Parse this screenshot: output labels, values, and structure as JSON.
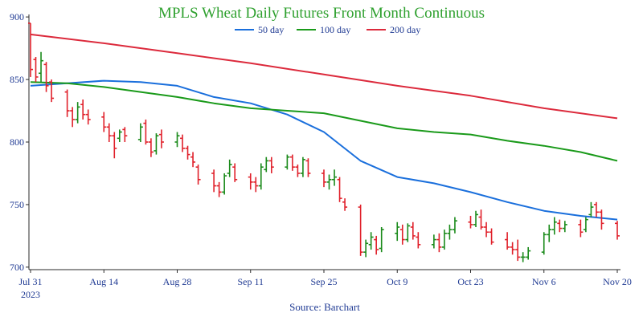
{
  "chart_data": {
    "type": "ohlc",
    "title": "MPLS Wheat Daily Futures Front Month Continuous",
    "source": "Source: Barchart",
    "colors": {
      "title": "#2ea02e",
      "up": "#1a8a1a",
      "down": "#e0202a",
      "axis_text": "#1f3a93"
    },
    "ylim": [
      698,
      902
    ],
    "y_ticks": [
      700,
      750,
      800,
      850,
      900
    ],
    "x_ticks": [
      {
        "label": "Jul 31",
        "sublabel": "2023",
        "date": "2023-07-31"
      },
      {
        "label": "Aug 14",
        "date": "2023-08-14"
      },
      {
        "label": "Aug 28",
        "date": "2023-08-28"
      },
      {
        "label": "Sep 11",
        "date": "2023-09-11"
      },
      {
        "label": "Sep 25",
        "date": "2023-09-25"
      },
      {
        "label": "Oct 9",
        "date": "2023-10-09"
      },
      {
        "label": "Oct 23",
        "date": "2023-10-23"
      },
      {
        "label": "Nov 6",
        "date": "2023-11-06"
      },
      {
        "label": "Nov 20",
        "date": "2023-11-20"
      }
    ],
    "x_range": [
      "2023-07-31",
      "2023-11-20"
    ],
    "series": [
      {
        "name": "50 day",
        "color": "#1a6fdc",
        "points": [
          [
            "2023-07-31",
            845
          ],
          [
            "2023-08-07",
            847
          ],
          [
            "2023-08-14",
            849
          ],
          [
            "2023-08-21",
            848
          ],
          [
            "2023-08-28",
            845
          ],
          [
            "2023-09-04",
            836
          ],
          [
            "2023-09-11",
            831
          ],
          [
            "2023-09-18",
            822
          ],
          [
            "2023-09-25",
            808
          ],
          [
            "2023-10-02",
            785
          ],
          [
            "2023-10-09",
            772
          ],
          [
            "2023-10-16",
            767
          ],
          [
            "2023-10-23",
            760
          ],
          [
            "2023-10-30",
            752
          ],
          [
            "2023-11-06",
            745
          ],
          [
            "2023-11-13",
            741
          ],
          [
            "2023-11-20",
            738
          ]
        ]
      },
      {
        "name": "100 day",
        "color": "#1a9a1a",
        "points": [
          [
            "2023-07-31",
            848
          ],
          [
            "2023-08-07",
            847
          ],
          [
            "2023-08-14",
            844
          ],
          [
            "2023-08-21",
            840
          ],
          [
            "2023-08-28",
            836
          ],
          [
            "2023-09-04",
            831
          ],
          [
            "2023-09-11",
            827
          ],
          [
            "2023-09-18",
            825
          ],
          [
            "2023-09-25",
            823
          ],
          [
            "2023-10-02",
            817
          ],
          [
            "2023-10-09",
            811
          ],
          [
            "2023-10-16",
            808
          ],
          [
            "2023-10-23",
            806
          ],
          [
            "2023-10-30",
            801
          ],
          [
            "2023-11-06",
            797
          ],
          [
            "2023-11-13",
            792
          ],
          [
            "2023-11-20",
            785
          ]
        ]
      },
      {
        "name": "200 day",
        "color": "#dc2a3c",
        "points": [
          [
            "2023-07-31",
            886
          ],
          [
            "2023-08-14",
            879
          ],
          [
            "2023-08-28",
            871
          ],
          [
            "2023-09-11",
            863
          ],
          [
            "2023-09-25",
            854
          ],
          [
            "2023-10-09",
            845
          ],
          [
            "2023-10-23",
            837
          ],
          [
            "2023-11-06",
            827
          ],
          [
            "2023-11-20",
            819
          ]
        ]
      }
    ],
    "ohlc": [
      [
        "2023-07-31",
        895,
        895,
        852,
        858
      ],
      [
        "2023-08-01",
        866,
        868,
        848,
        852
      ],
      [
        "2023-08-02",
        855,
        872,
        848,
        865
      ],
      [
        "2023-08-03",
        862,
        864,
        840,
        845
      ],
      [
        "2023-08-04",
        848,
        850,
        832,
        835
      ],
      [
        "2023-08-07",
        840,
        842,
        820,
        825
      ],
      [
        "2023-08-08",
        825,
        828,
        812,
        818
      ],
      [
        "2023-08-09",
        818,
        832,
        815,
        828
      ],
      [
        "2023-08-10",
        830,
        834,
        818,
        822
      ],
      [
        "2023-08-11",
        822,
        826,
        814,
        818
      ],
      [
        "2023-08-14",
        820,
        824,
        808,
        812
      ],
      [
        "2023-08-15",
        812,
        815,
        800,
        805
      ],
      [
        "2023-08-16",
        805,
        808,
        787,
        795
      ],
      [
        "2023-08-17",
        803,
        810,
        800,
        808
      ],
      [
        "2023-08-18",
        810,
        812,
        800,
        805
      ],
      [
        "2023-08-21",
        802,
        815,
        800,
        812
      ],
      [
        "2023-08-22",
        815,
        818,
        798,
        800
      ],
      [
        "2023-08-23",
        800,
        803,
        788,
        792
      ],
      [
        "2023-08-24",
        793,
        807,
        790,
        805
      ],
      [
        "2023-08-25",
        806,
        810,
        795,
        800
      ],
      [
        "2023-08-28",
        800,
        808,
        796,
        805
      ],
      [
        "2023-08-29",
        803,
        806,
        792,
        795
      ],
      [
        "2023-08-30",
        795,
        797,
        786,
        790
      ],
      [
        "2023-08-31",
        788,
        792,
        780,
        784
      ],
      [
        "2023-09-01",
        780,
        782,
        766,
        770
      ],
      [
        "2023-09-04",
        775,
        778,
        760,
        765
      ],
      [
        "2023-09-05",
        765,
        768,
        756,
        760
      ],
      [
        "2023-09-06",
        760,
        775,
        758,
        773
      ],
      [
        "2023-09-07",
        775,
        786,
        772,
        782
      ],
      [
        "2023-09-08",
        780,
        783,
        768,
        770
      ],
      [
        "2023-09-11",
        772,
        775,
        762,
        768
      ],
      [
        "2023-09-12",
        768,
        772,
        760,
        765
      ],
      [
        "2023-09-13",
        765,
        783,
        762,
        780
      ],
      [
        "2023-09-14",
        778,
        788,
        776,
        785
      ],
      [
        "2023-09-15",
        785,
        788,
        775,
        780
      ],
      [
        "2023-09-18",
        780,
        790,
        778,
        788
      ],
      [
        "2023-09-19",
        788,
        790,
        777,
        780
      ],
      [
        "2023-09-20",
        780,
        782,
        772,
        775
      ],
      [
        "2023-09-21",
        775,
        788,
        772,
        786
      ],
      [
        "2023-09-22",
        785,
        787,
        772,
        775
      ],
      [
        "2023-09-25",
        775,
        778,
        764,
        768
      ],
      [
        "2023-09-26",
        768,
        774,
        762,
        770
      ],
      [
        "2023-09-27",
        770,
        778,
        765,
        772
      ],
      [
        "2023-09-28",
        770,
        772,
        752,
        755
      ],
      [
        "2023-09-29",
        752,
        755,
        745,
        748
      ],
      [
        "2023-10-02",
        748,
        750,
        709,
        712
      ],
      [
        "2023-10-03",
        712,
        722,
        708,
        719
      ],
      [
        "2023-10-04",
        718,
        728,
        714,
        724
      ],
      [
        "2023-10-05",
        722,
        725,
        710,
        714
      ],
      [
        "2023-10-06",
        715,
        732,
        712,
        730
      ],
      [
        "2023-10-09",
        727,
        736,
        721,
        732
      ],
      [
        "2023-10-10",
        730,
        734,
        718,
        722
      ],
      [
        "2023-10-11",
        722,
        735,
        720,
        733
      ],
      [
        "2023-10-12",
        732,
        736,
        722,
        725
      ],
      [
        "2023-10-13",
        724,
        728,
        715,
        718
      ],
      [
        "2023-10-16",
        718,
        726,
        715,
        722
      ],
      [
        "2023-10-17",
        722,
        727,
        712,
        716
      ],
      [
        "2023-10-18",
        716,
        730,
        714,
        727
      ],
      [
        "2023-10-19",
        727,
        734,
        722,
        730
      ],
      [
        "2023-10-20",
        730,
        740,
        727,
        737
      ],
      [
        "2023-10-23",
        736,
        741,
        731,
        734
      ],
      [
        "2023-10-24",
        734,
        745,
        732,
        742
      ],
      [
        "2023-10-25",
        740,
        746,
        730,
        732
      ],
      [
        "2023-10-26",
        732,
        736,
        724,
        728
      ],
      [
        "2023-10-27",
        728,
        731,
        718,
        720
      ],
      [
        "2023-10-30",
        722,
        728,
        714,
        716
      ],
      [
        "2023-10-31",
        716,
        720,
        710,
        714
      ],
      [
        "2023-11-01",
        714,
        722,
        705,
        708
      ],
      [
        "2023-11-02",
        708,
        712,
        704,
        708
      ],
      [
        "2023-11-03",
        708,
        716,
        706,
        713
      ],
      [
        "2023-11-06",
        712,
        728,
        710,
        726
      ],
      [
        "2023-11-07",
        726,
        734,
        720,
        730
      ],
      [
        "2023-11-08",
        730,
        740,
        726,
        736
      ],
      [
        "2023-11-09",
        735,
        738,
        728,
        731
      ],
      [
        "2023-11-10",
        731,
        737,
        728,
        734
      ],
      [
        "2023-11-13",
        734,
        738,
        724,
        728
      ],
      [
        "2023-11-14",
        730,
        740,
        728,
        738
      ],
      [
        "2023-11-15",
        742,
        752,
        740,
        748
      ],
      [
        "2023-11-16",
        750,
        752,
        740,
        744
      ],
      [
        "2023-11-17",
        744,
        746,
        730,
        735
      ],
      [
        "2023-11-20",
        735,
        737,
        722,
        725
      ]
    ]
  }
}
